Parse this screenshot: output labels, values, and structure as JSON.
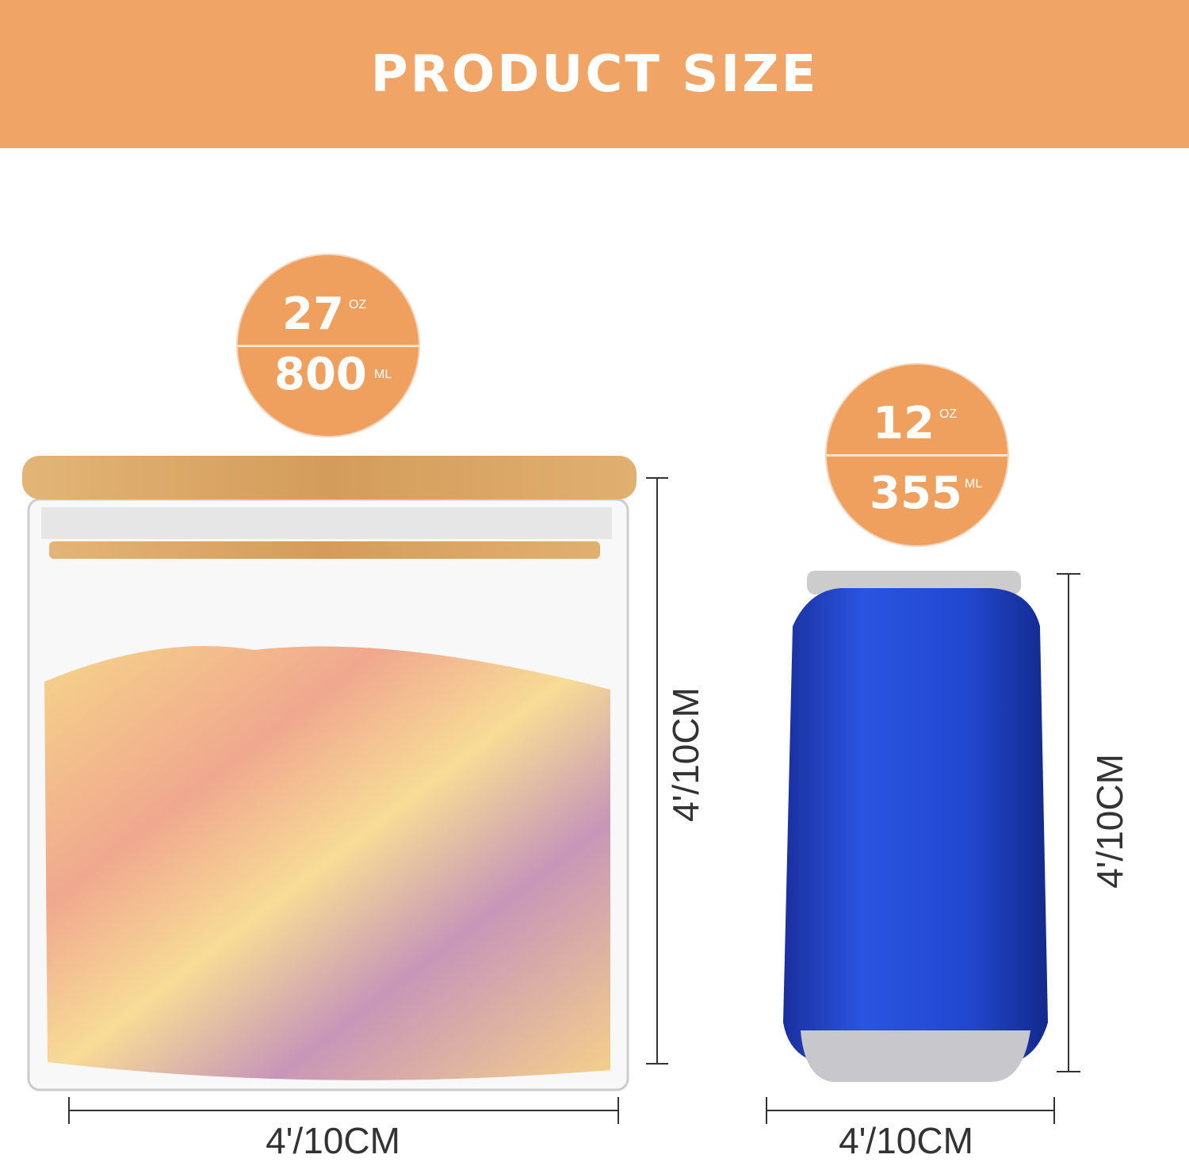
{
  "banner": {
    "title": "PRODUCT SIZE"
  },
  "jar": {
    "capacity_oz": "27",
    "oz_unit": "OZ",
    "capacity_ml": "800",
    "ml_unit": "ML",
    "height_label": "4'/10CM",
    "width_label": "4'/10CM"
  },
  "can": {
    "capacity_oz": "12",
    "oz_unit": "OZ",
    "capacity_ml": "355",
    "ml_unit": "ML",
    "height_label": "4'/10CM",
    "width_label": "4'/10CM"
  },
  "colors": {
    "accent": "#F0A465",
    "can_blue": "#1C3FCF",
    "lid_wood": "#D9A566"
  }
}
